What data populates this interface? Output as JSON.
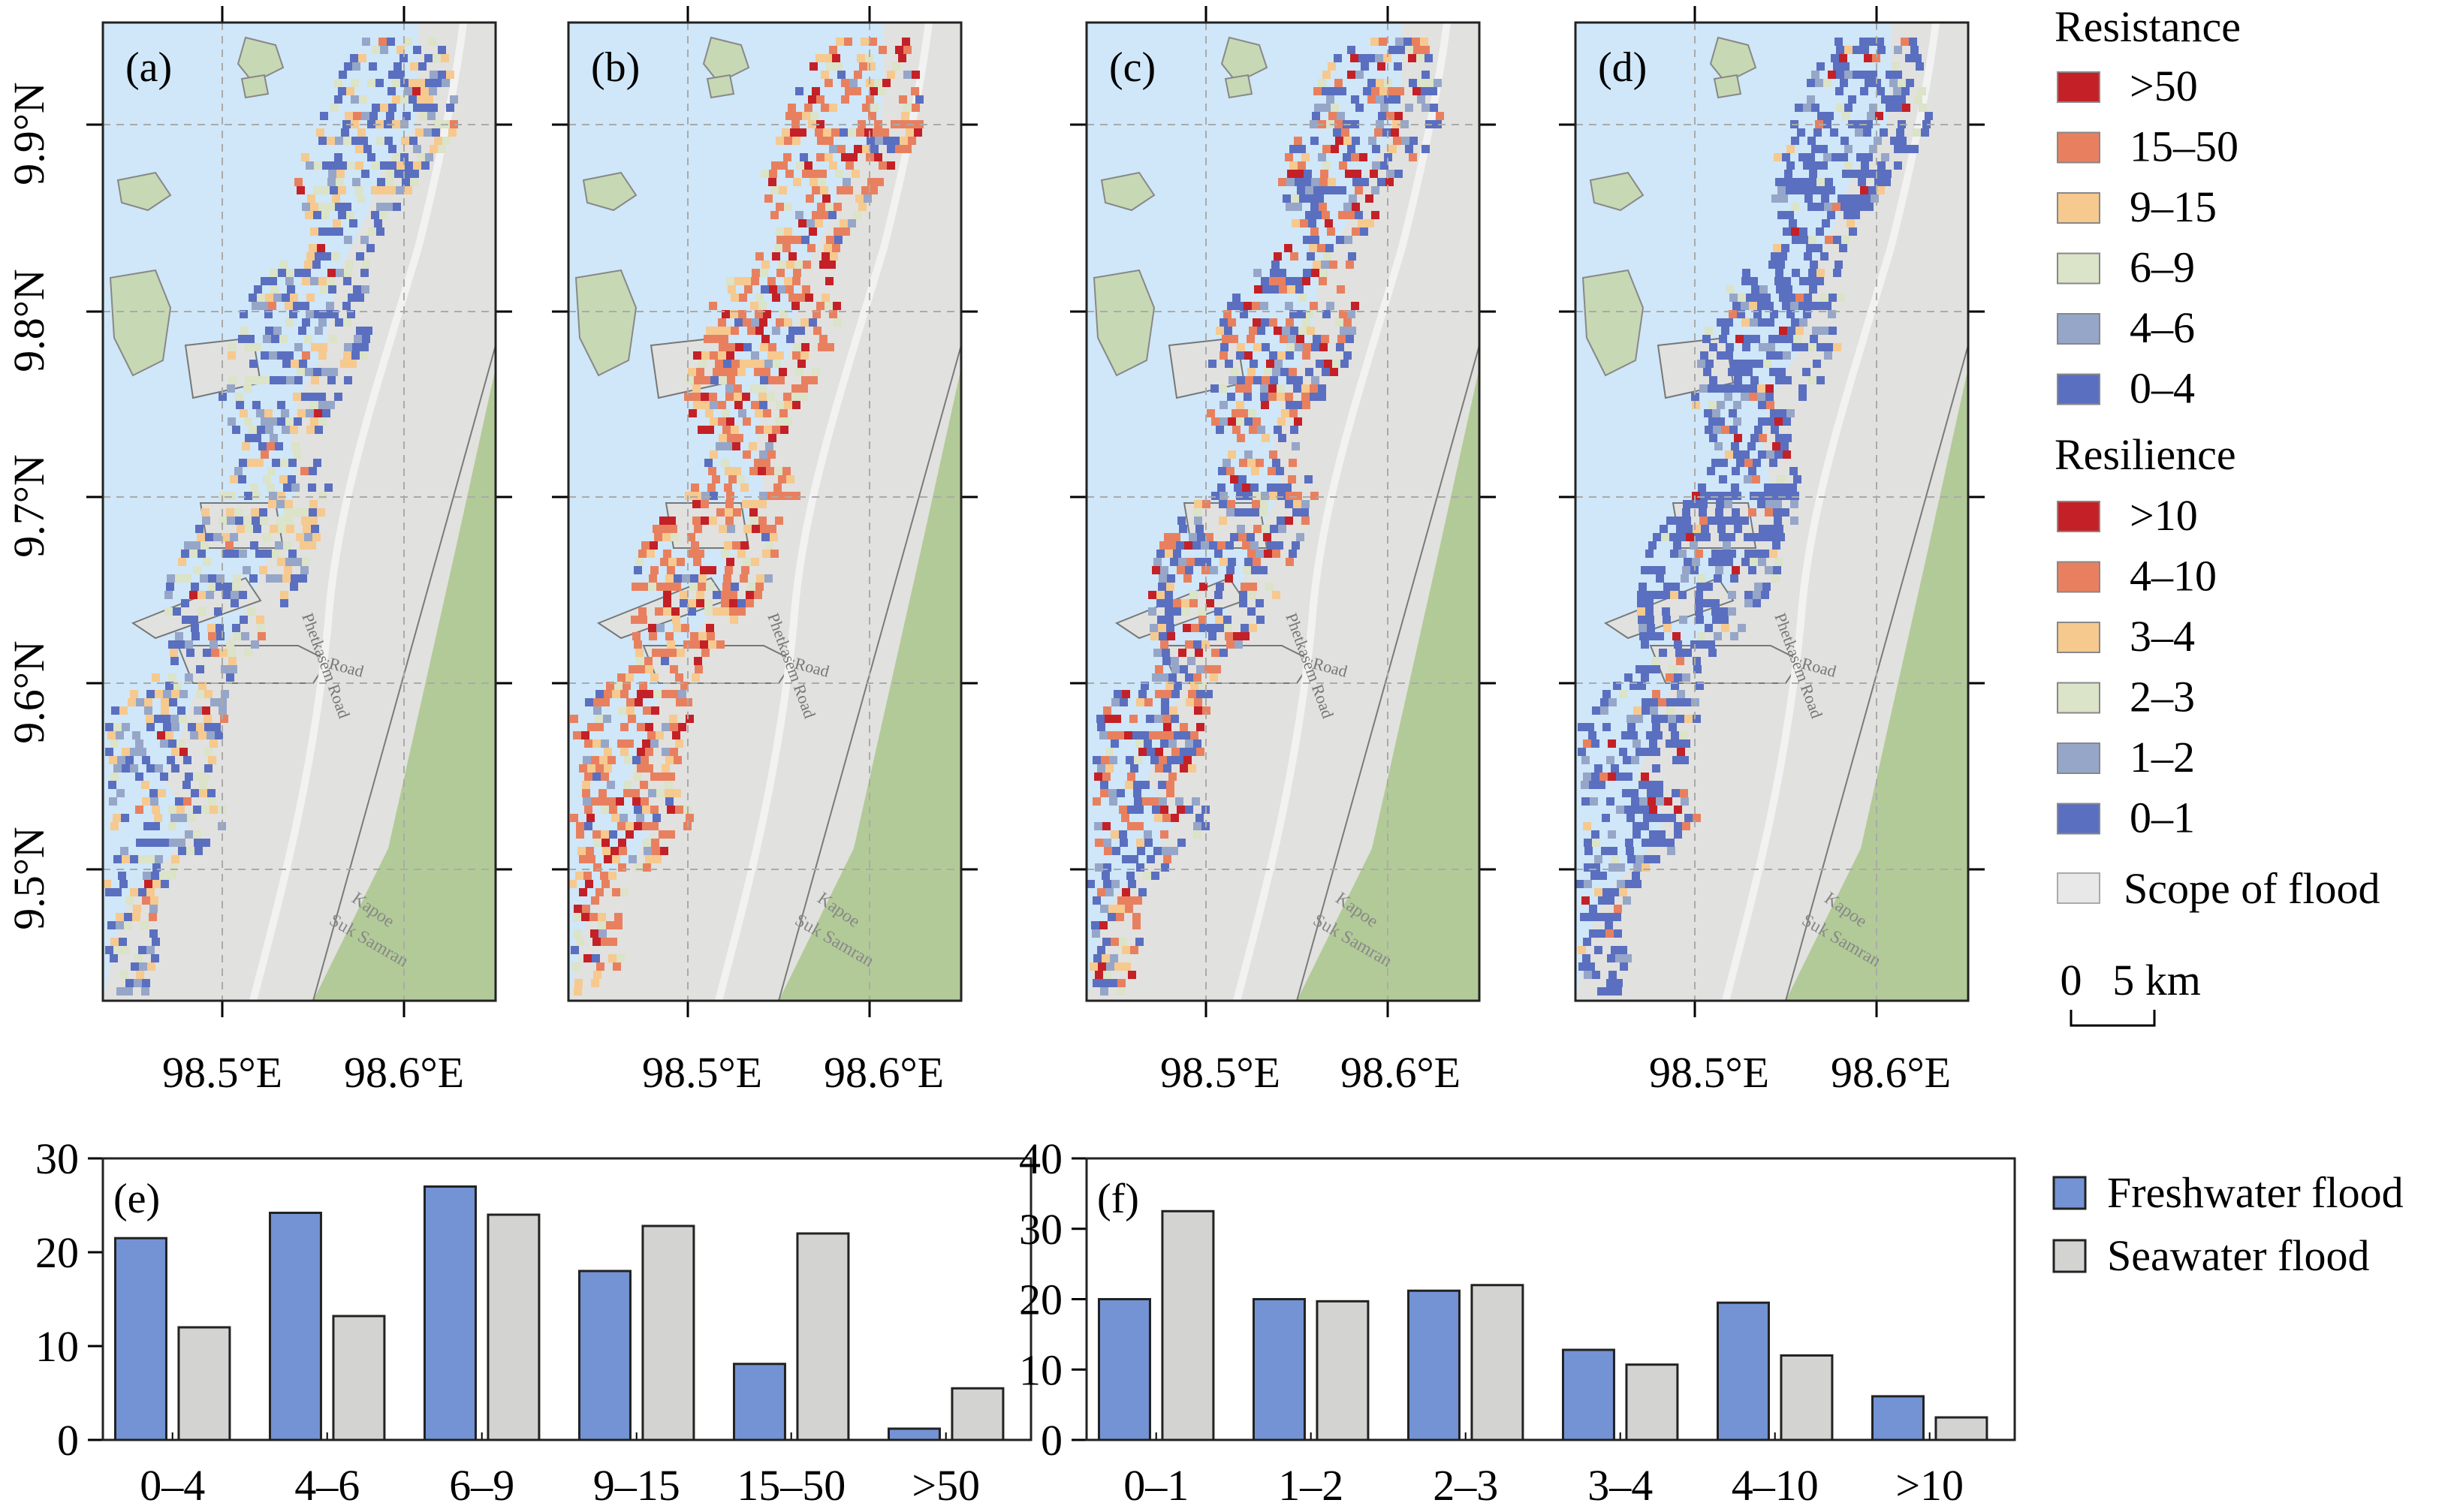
{
  "maps": {
    "panels": [
      {
        "label": "(a)",
        "palette": "resistance",
        "profile": "a"
      },
      {
        "label": "(b)",
        "palette": "resistance",
        "profile": "b"
      },
      {
        "label": "(c)",
        "palette": "resilience",
        "profile": "c"
      },
      {
        "label": "(d)",
        "palette": "resilience",
        "profile": "d"
      }
    ],
    "lat_ticks": [
      "9.9°N",
      "9.8°N",
      "9.7°N",
      "9.6°N",
      "9.5°N"
    ],
    "lon_ticks": [
      "98.5°E",
      "98.6°E"
    ],
    "place_labels": {
      "road": "Phetkasem Road",
      "road_short": "Road",
      "town1": "Kapoe",
      "town2": "Suk Samran"
    },
    "colors": {
      "water": "#cfe7f8",
      "land": "#e1e1df",
      "green": "#a9c68c",
      "island": "#c7d8b4",
      "grid": "#aaaaaa"
    }
  },
  "legend": {
    "resistance_title": "Resistance",
    "resistance_items": [
      {
        "label": ">50",
        "color": "#c42027"
      },
      {
        "label": "15–50",
        "color": "#e8805f"
      },
      {
        "label": "9–15",
        "color": "#f6c98f"
      },
      {
        "label": "6–9",
        "color": "#dbe3c8"
      },
      {
        "label": "4–6",
        "color": "#96a6c8"
      },
      {
        "label": "0–4",
        "color": "#5a6fbf"
      }
    ],
    "resilience_title": "Resilience",
    "resilience_items": [
      {
        "label": ">10",
        "color": "#c42027"
      },
      {
        "label": "4–10",
        "color": "#e8805f"
      },
      {
        "label": "3–4",
        "color": "#f6c98f"
      },
      {
        "label": "2–3",
        "color": "#dbe3c8"
      },
      {
        "label": "1–2",
        "color": "#96a6c8"
      },
      {
        "label": "0–1",
        "color": "#5a6fbf"
      }
    ],
    "flood_label": "Scope of flood",
    "flood_color": "#e8e8e8",
    "scale_start": "0",
    "scale_end": "5 km"
  },
  "bar_legend": [
    {
      "label": "Freshwater flood",
      "color": "#7393d4"
    },
    {
      "label": "Seawater flood",
      "color": "#d3d3d1"
    }
  ],
  "chart_data": [
    {
      "type": "bar",
      "panel": "(e)",
      "categories": [
        "0–4",
        "4–6",
        "6–9",
        "9–15",
        "15–50",
        ">50"
      ],
      "series": [
        {
          "name": "Freshwater flood",
          "values": [
            21.5,
            24.2,
            27.0,
            18.0,
            8.1,
            1.2
          ]
        },
        {
          "name": "Seawater flood",
          "values": [
            12.0,
            13.2,
            24.0,
            22.8,
            22.0,
            5.5
          ]
        }
      ],
      "ylim": [
        0,
        30
      ],
      "yticks": [
        "0",
        "10",
        "20",
        "30"
      ]
    },
    {
      "type": "bar",
      "panel": "(f)",
      "categories": [
        "0–1",
        "1–2",
        "2–3",
        "3–4",
        "4–10",
        ">10"
      ],
      "series": [
        {
          "name": "Freshwater flood",
          "values": [
            20.0,
            20.0,
            21.2,
            12.8,
            19.5,
            6.2
          ]
        },
        {
          "name": "Seawater flood",
          "values": [
            32.5,
            19.7,
            22.0,
            10.7,
            12.0,
            3.2
          ]
        }
      ],
      "ylim": [
        0,
        40
      ],
      "yticks": [
        "0",
        "10",
        "20",
        "30",
        "40"
      ]
    }
  ]
}
